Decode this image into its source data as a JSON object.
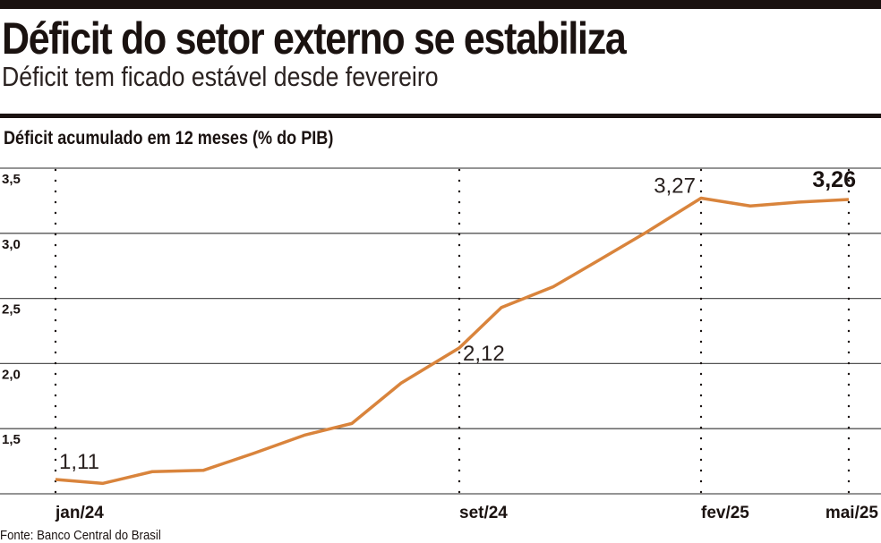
{
  "header": {
    "title": "Déficit do setor externo se estabiliza",
    "subtitle": "Déficit tem ficado estável desde fevereiro"
  },
  "source": "Fonte: Banco Central do Brasil",
  "chart_data": {
    "type": "line",
    "title": "Déficit acumulado em 12 meses (% do PIB)",
    "xlabel": "",
    "ylabel": "",
    "ylim": [
      1.0,
      3.5
    ],
    "y_ticks": [
      "3,5",
      "3,0",
      "2,5",
      "2,0",
      "1,5"
    ],
    "y_tick_values": [
      3.5,
      3.0,
      2.5,
      2.0,
      1.5
    ],
    "grid": "horizontal",
    "x": [
      "jan/24",
      "fev/24",
      "mar/24",
      "abr/24",
      "mai/24",
      "jun/24",
      "jul/24",
      "ago/24",
      "set/24",
      "out/24",
      "nov/24",
      "dez/24",
      "jan/25",
      "fev/25",
      "mar/25",
      "abr/25",
      "mai/25"
    ],
    "x_tick_labels": [
      {
        "label": "jan/24",
        "index": 0
      },
      {
        "label": "set/24",
        "index": 8
      },
      {
        "label": "fev/25",
        "index": 13
      },
      {
        "label": "mai/25",
        "index": 16
      }
    ],
    "series": [
      {
        "values": [
          1.11,
          1.08,
          1.17,
          1.18,
          1.31,
          1.45,
          1.54,
          1.85,
          2.12,
          2.43,
          2.59,
          2.79,
          3.0,
          3.27,
          3.21,
          3.24,
          3.26
        ]
      }
    ],
    "annotations": [
      {
        "label": "1,11",
        "index": 0,
        "bold": false
      },
      {
        "label": "2,12",
        "index": 8,
        "bold": false
      },
      {
        "label": "3,27",
        "index": 13,
        "bold": false
      },
      {
        "label": "3,26",
        "index": 16,
        "bold": true
      }
    ],
    "colors": {
      "line": "#d9843c",
      "grid": "#555555",
      "text": "#1a1210"
    }
  }
}
